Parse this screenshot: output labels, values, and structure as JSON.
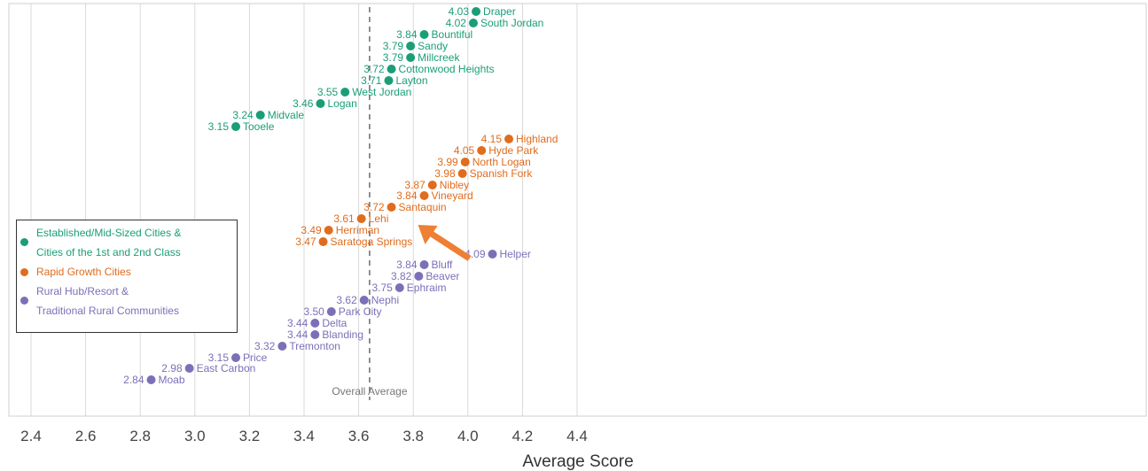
{
  "chart_data": {
    "type": "scatter",
    "xlabel": "Average Score",
    "ylabel": "",
    "xlim": [
      2.4,
      4.4
    ],
    "xticks": [
      "2.4",
      "2.6",
      "2.8",
      "3.0",
      "3.2",
      "3.4",
      "3.6",
      "3.8",
      "4.0",
      "4.2",
      "4.4"
    ],
    "grid": "vertical",
    "reference_line": {
      "x": 3.64,
      "label": "Overall Average"
    },
    "legend": {
      "placement": "left"
    },
    "series": [
      {
        "name": "Established/Mid-Sized Cities & Cities of the 1st and 2nd Class",
        "name_lines": [
          "Established/Mid-Sized Cities &",
          "Cities of the 1st and 2nd Class"
        ],
        "color": "#1a9e77",
        "points": [
          {
            "city": "Draper",
            "label": "4.03",
            "x": 4.03
          },
          {
            "city": "South Jordan",
            "label": "4.02",
            "x": 4.02
          },
          {
            "city": "Bountiful",
            "label": "3.84",
            "x": 3.84
          },
          {
            "city": "Sandy",
            "label": "3.79",
            "x": 3.79
          },
          {
            "city": "Millcreek",
            "label": "3.79",
            "x": 3.79
          },
          {
            "city": "Cottonwood Heights",
            "label": "3.72",
            "x": 3.72
          },
          {
            "city": "Layton",
            "label": "3.71",
            "x": 3.71
          },
          {
            "city": "West Jordan",
            "label": "3.55",
            "x": 3.55
          },
          {
            "city": "Logan",
            "label": "3.46",
            "x": 3.46
          },
          {
            "city": "Midvale",
            "label": "3.24",
            "x": 3.24
          },
          {
            "city": "Tooele",
            "label": "3.15",
            "x": 3.15
          }
        ]
      },
      {
        "name": "Rapid Growth Cities",
        "name_lines": [
          "Rapid Growth Cities"
        ],
        "color": "#e06c1d",
        "points": [
          {
            "city": "Highland",
            "label": "4.15",
            "x": 4.15
          },
          {
            "city": "Hyde Park",
            "label": "4.05",
            "x": 4.05
          },
          {
            "city": "North Logan",
            "label": "3.99",
            "x": 3.99
          },
          {
            "city": "Spanish Fork",
            "label": "3.98",
            "x": 3.98
          },
          {
            "city": "Nibley",
            "label": "3.87",
            "x": 3.87
          },
          {
            "city": "Vineyard",
            "label": "3.84",
            "x": 3.84
          },
          {
            "city": "Santaquin",
            "label": "3.72",
            "x": 3.72
          },
          {
            "city": "Lehi",
            "label": "3.61",
            "x": 3.61
          },
          {
            "city": "Herriman",
            "label": "3.49",
            "x": 3.49
          },
          {
            "city": "Saratoga Springs",
            "label": "3.47",
            "x": 3.47
          }
        ]
      },
      {
        "name": "Rural Hub/Resort & Traditional Rural Communities",
        "name_lines": [
          "Rural Hub/Resort &",
          "Traditional Rural Communities"
        ],
        "color": "#7b70b8",
        "points": [
          {
            "city": "Helper",
            "label": "4.09",
            "x": 4.09
          },
          {
            "city": "Bluff",
            "label": "3.84",
            "x": 3.84
          },
          {
            "city": "Beaver",
            "label": "3.82",
            "x": 3.82
          },
          {
            "city": "Ephraim",
            "label": "3.75",
            "x": 3.75
          },
          {
            "city": "Nephi",
            "label": "3.62",
            "x": 3.62
          },
          {
            "city": "Park City",
            "label": "3.50",
            "x": 3.5
          },
          {
            "city": "Delta",
            "label": "3.44",
            "x": 3.44
          },
          {
            "city": "Blanding",
            "label": "3.44",
            "x": 3.44
          },
          {
            "city": "Tremonton",
            "label": "3.32",
            "x": 3.32
          },
          {
            "city": "Price",
            "label": "3.15",
            "x": 3.15
          },
          {
            "city": "East Carbon",
            "label": "2.98",
            "x": 2.98
          },
          {
            "city": "Moab",
            "label": "2.84",
            "x": 2.84
          }
        ]
      }
    ],
    "annotation": {
      "type": "arrow",
      "points_to": "Santaquin",
      "color": "#ee7f33"
    }
  }
}
